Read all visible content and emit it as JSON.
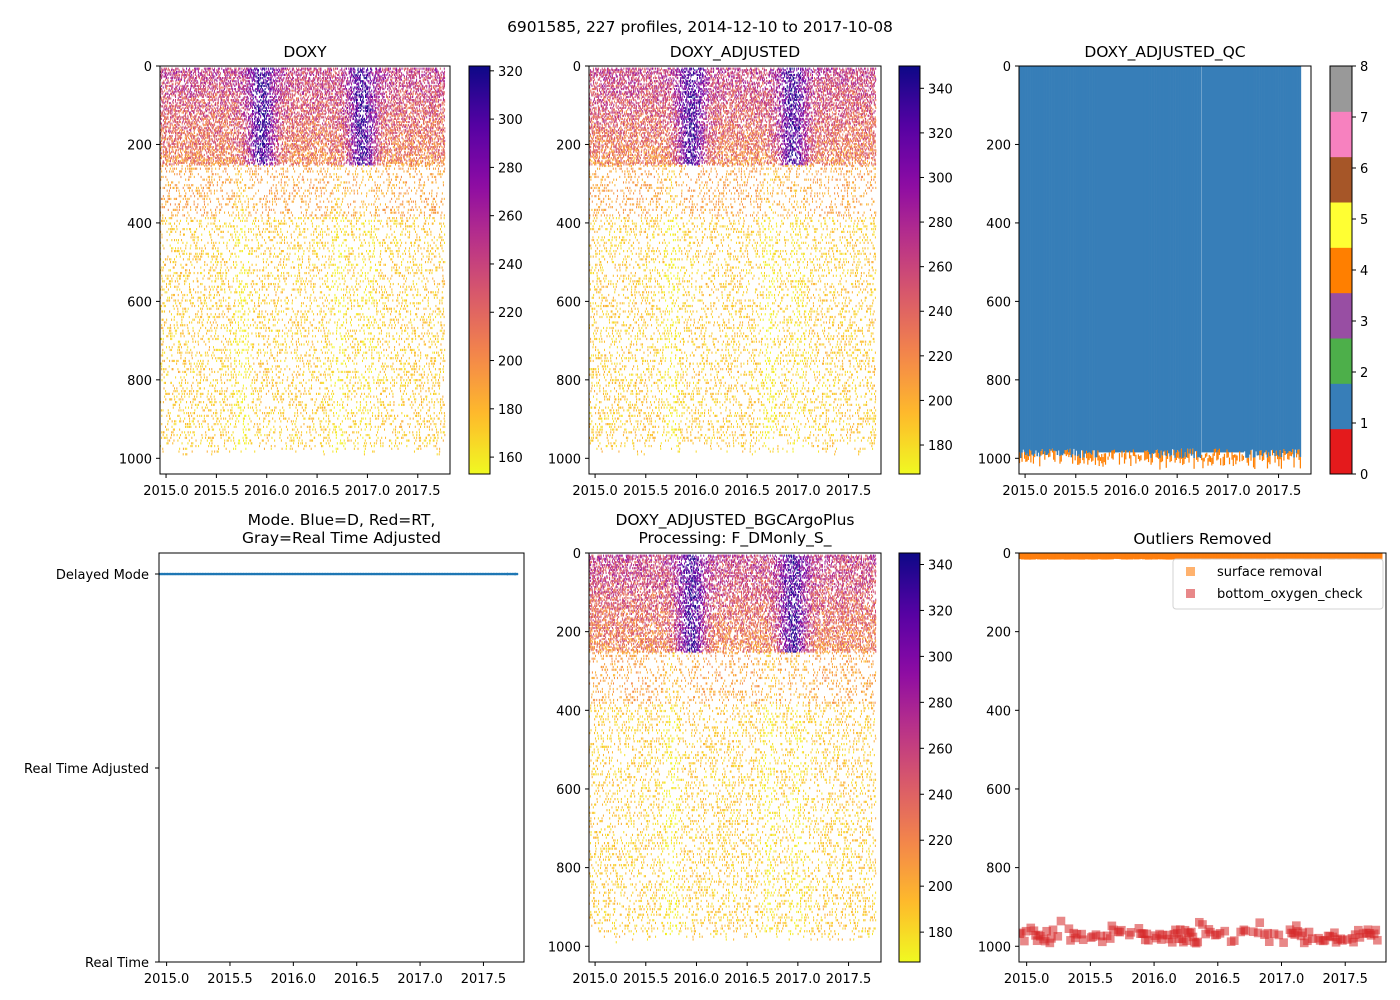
{
  "suptitle": "6901585, 227 profiles, 2014-12-10 to 2017-10-08",
  "colors": {
    "qc": [
      "#e41a1c",
      "#377eb8",
      "#4daf4a",
      "#984ea3",
      "#ff7f00",
      "#ffff33",
      "#a65628",
      "#f781bf",
      "#999999"
    ],
    "mode_delayed": "#1f77b4",
    "surface_removal": "#ff7f0e",
    "bottom_oxygen_check": "#d62728"
  },
  "chart_data": [
    {
      "id": "doxy",
      "type": "heatmap",
      "title": "DOXY",
      "x_ticks": [
        "2015.0",
        "2015.5",
        "2016.0",
        "2016.5",
        "2017.0",
        "2017.5"
      ],
      "y_ticks": [
        "0",
        "200",
        "400",
        "600",
        "800",
        "1000"
      ],
      "xlim": [
        2014.94,
        2017.82
      ],
      "ylim": [
        1040,
        0
      ],
      "colorbar": {
        "cmap": "plasma_r",
        "range": [
          153,
          322
        ],
        "ticks": [
          "160",
          "180",
          "200",
          "220",
          "240",
          "260",
          "280",
          "300",
          "320"
        ]
      }
    },
    {
      "id": "doxy_adj",
      "type": "heatmap",
      "title": "DOXY_ADJUSTED",
      "x_ticks": [
        "2015.0",
        "2015.5",
        "2016.0",
        "2016.5",
        "2017.0",
        "2017.5"
      ],
      "y_ticks": [
        "0",
        "200",
        "400",
        "600",
        "800",
        "1000"
      ],
      "xlim": [
        2014.94,
        2017.82
      ],
      "ylim": [
        1040,
        0
      ],
      "colorbar": {
        "cmap": "plasma_r",
        "range": [
          167,
          350
        ],
        "ticks": [
          "180",
          "200",
          "220",
          "240",
          "260",
          "280",
          "300",
          "320",
          "340"
        ]
      }
    },
    {
      "id": "qc",
      "type": "heatmap",
      "title": "DOXY_ADJUSTED_QC",
      "x_ticks": [
        "2015.0",
        "2015.5",
        "2016.0",
        "2016.5",
        "2017.0",
        "2017.5"
      ],
      "y_ticks": [
        "0",
        "200",
        "400",
        "600",
        "800",
        "1000"
      ],
      "xlim": [
        2014.94,
        2017.82
      ],
      "ylim": [
        1040,
        0
      ],
      "colorbar": {
        "cmap": "Set1",
        "range": [
          0,
          8
        ],
        "ticks": [
          "0",
          "1",
          "2",
          "3",
          "4",
          "5",
          "6",
          "7",
          "8"
        ]
      },
      "dominant_flag": 1,
      "bottom_flag": 4
    },
    {
      "id": "mode",
      "type": "scatter",
      "title_lines": [
        "Mode. Blue=D, Red=RT,",
        "Gray=Real Time Adjusted"
      ],
      "x_ticks": [
        "2015.0",
        "2015.5",
        "2016.0",
        "2016.5",
        "2017.0",
        "2017.5"
      ],
      "categories": [
        "Real Time",
        "Real Time Adjusted",
        "Delayed Mode"
      ],
      "xlim": [
        2014.94,
        2017.82
      ],
      "value": "Delayed Mode"
    },
    {
      "id": "bgc",
      "type": "heatmap",
      "title_lines": [
        "DOXY_ADJUSTED_BGCArgoPlus",
        "Processing: F_DMonly_S_"
      ],
      "x_ticks": [
        "2015.0",
        "2015.5",
        "2016.0",
        "2016.5",
        "2017.0",
        "2017.5"
      ],
      "y_ticks": [
        "0",
        "200",
        "400",
        "600",
        "800",
        "1000"
      ],
      "xlim": [
        2014.94,
        2017.82
      ],
      "ylim": [
        1040,
        0
      ],
      "colorbar": {
        "cmap": "plasma_r",
        "range": [
          167,
          345
        ],
        "ticks": [
          "180",
          "200",
          "220",
          "240",
          "260",
          "280",
          "300",
          "320",
          "340"
        ]
      }
    },
    {
      "id": "outliers",
      "type": "scatter",
      "title": "Outliers Removed",
      "x_ticks": [
        "2015.0",
        "2015.5",
        "2016.0",
        "2016.5",
        "2017.0",
        "2017.5"
      ],
      "y_ticks": [
        "0",
        "200",
        "400",
        "600",
        "800",
        "1000"
      ],
      "xlim": [
        2014.94,
        2017.82
      ],
      "ylim": [
        1040,
        0
      ],
      "legend": [
        "surface removal",
        "bottom_oxygen_check"
      ],
      "legend_loc": "upper right",
      "surface_depth_range": [
        0,
        8
      ],
      "bottom_depth_range": [
        940,
        1015
      ]
    }
  ]
}
